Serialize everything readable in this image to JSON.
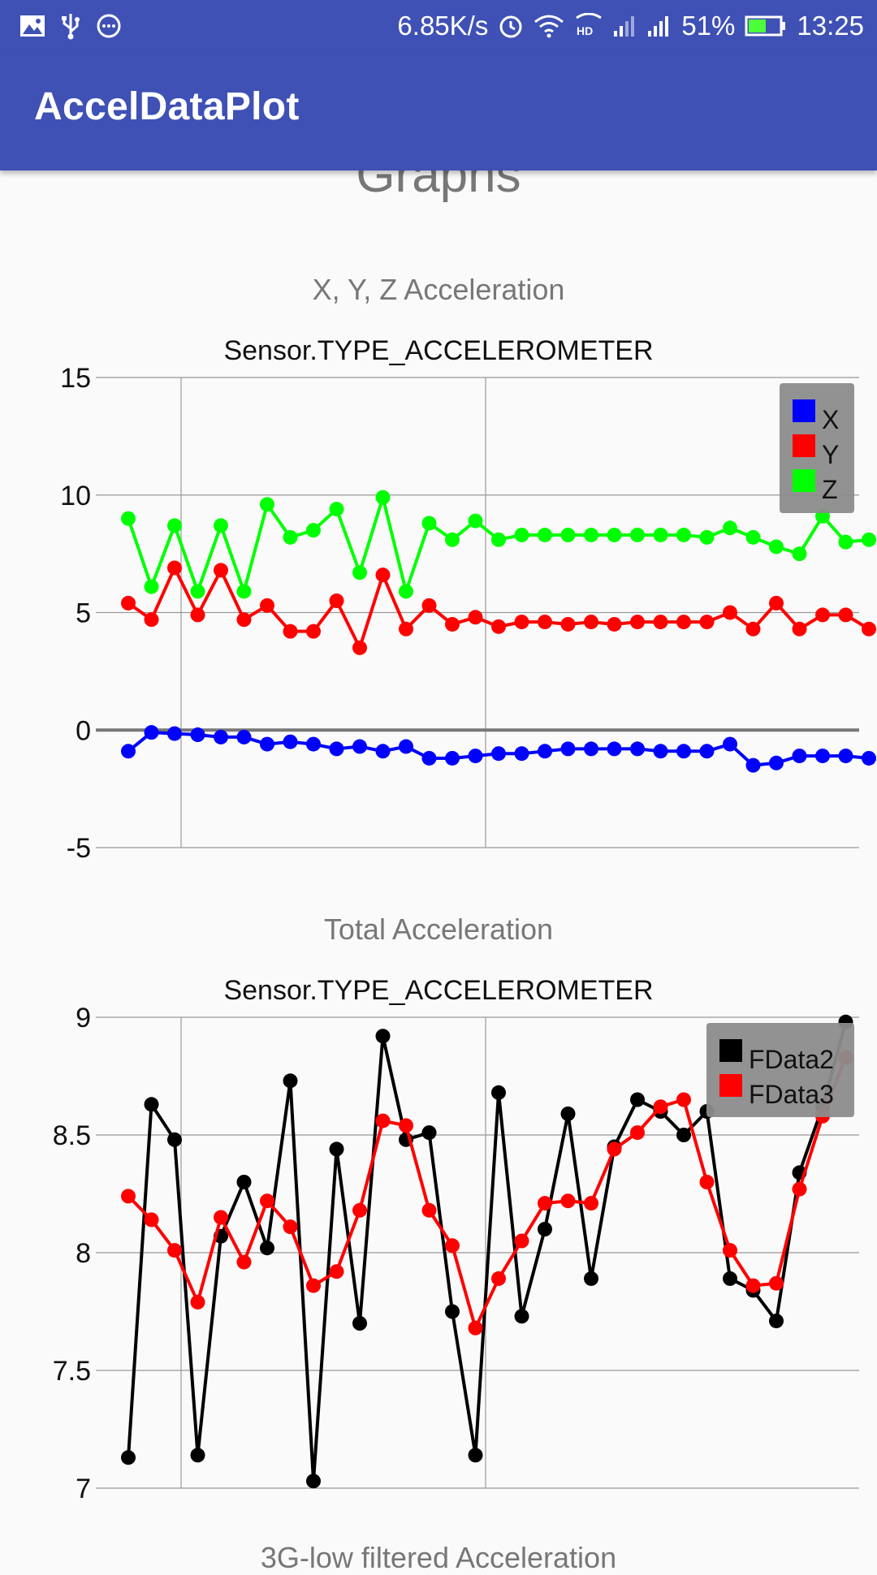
{
  "status_bar": {
    "left_icons": [
      "image-icon",
      "usb-icon",
      "more-icon"
    ],
    "net_speed": "6.85K/s",
    "battery_percent": "51%",
    "time": "13:25"
  },
  "app_bar": {
    "title": "AccelDataPlot"
  },
  "page": {
    "heading": "Graphs",
    "next_section_partial": "3G-low filtered Acceleration"
  },
  "charts": [
    {
      "section_title": "X, Y, Z Acceleration",
      "chart_title": "Sensor.TYPE_ACCELEROMETER"
    },
    {
      "section_title": "Total Acceleration",
      "chart_title": "Sensor.TYPE_ACCELEROMETER"
    }
  ],
  "chart_data": [
    {
      "type": "line",
      "title": "Sensor.TYPE_ACCELEROMETER",
      "ylim": [
        -5,
        15
      ],
      "yticks": [
        "15",
        "10",
        "5",
        "0",
        "-5"
      ],
      "grid": true,
      "legend_position": "top-right",
      "series": [
        {
          "name": "X",
          "color": "#0000ff",
          "values": [
            -0.9,
            -0.1,
            -0.15,
            -0.2,
            -0.3,
            -0.3,
            -0.6,
            -0.5,
            -0.6,
            -0.8,
            -0.7,
            -0.9,
            -0.7,
            -1.2,
            -1.2,
            -1.1,
            -1.0,
            -1.0,
            -0.9,
            -0.8,
            -0.8,
            -0.8,
            -0.8,
            -0.9,
            -0.9,
            -0.9,
            -0.6,
            -1.5,
            -1.4,
            -1.1,
            -1.1,
            -1.1,
            -1.2
          ]
        },
        {
          "name": "Y",
          "color": "#ff0000",
          "values": [
            5.4,
            4.7,
            6.9,
            4.9,
            6.8,
            4.7,
            5.3,
            4.2,
            4.2,
            5.5,
            3.5,
            6.6,
            4.3,
            5.3,
            4.5,
            4.8,
            4.4,
            4.6,
            4.6,
            4.5,
            4.6,
            4.5,
            4.6,
            4.6,
            4.6,
            4.6,
            5.0,
            4.3,
            5.4,
            4.3,
            4.9,
            4.9,
            4.3
          ]
        },
        {
          "name": "Z",
          "color": "#00ff00",
          "values": [
            9.0,
            6.1,
            8.7,
            5.9,
            8.7,
            5.9,
            9.6,
            8.2,
            8.5,
            9.4,
            6.7,
            9.9,
            5.9,
            8.8,
            8.1,
            8.9,
            8.1,
            8.3,
            8.3,
            8.3,
            8.3,
            8.3,
            8.3,
            8.3,
            8.3,
            8.2,
            8.6,
            8.2,
            7.8,
            7.5,
            9.1,
            8.0,
            8.1
          ]
        }
      ]
    },
    {
      "type": "line",
      "title": "Sensor.TYPE_ACCELEROMETER",
      "ylim": [
        7,
        9
      ],
      "yticks": [
        "9",
        "8.5",
        "8",
        "7.5",
        "7"
      ],
      "grid": true,
      "legend_position": "top-right",
      "series": [
        {
          "name": "FData2",
          "color": "#000000",
          "values": [
            7.13,
            8.63,
            8.48,
            7.14,
            8.07,
            8.3,
            8.02,
            8.73,
            7.03,
            8.44,
            7.7,
            8.92,
            8.48,
            8.51,
            7.75,
            7.14,
            8.68,
            7.73,
            8.1,
            8.59,
            7.89,
            8.45,
            8.65,
            8.6,
            8.5,
            8.6,
            7.89,
            7.84,
            7.71,
            8.34,
            8.62,
            8.98
          ]
        },
        {
          "name": "FData3",
          "color": "#ff0000",
          "values": [
            8.24,
            8.14,
            8.01,
            7.79,
            8.15,
            7.96,
            8.22,
            8.11,
            7.86,
            7.92,
            8.18,
            8.56,
            8.54,
            8.18,
            8.03,
            7.68,
            7.89,
            8.05,
            8.21,
            8.22,
            8.21,
            8.44,
            8.51,
            8.62,
            8.65,
            8.3,
            8.01,
            7.86,
            7.87,
            8.27,
            8.58,
            8.83
          ]
        }
      ]
    }
  ]
}
